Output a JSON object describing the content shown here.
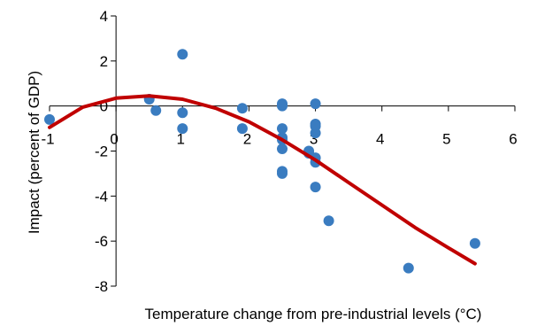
{
  "chart_data": {
    "type": "scatter",
    "title": "",
    "xlabel": "Temperature change from pre-industrial levels (°C)",
    "ylabel": "Impact (percent of GDP)",
    "xlim": [
      -1,
      6
    ],
    "ylim": [
      -8,
      4
    ],
    "xticks": [
      -1,
      0,
      1,
      2,
      3,
      4,
      5,
      6
    ],
    "yticks": [
      -8,
      -6,
      -4,
      -2,
      0,
      2,
      4
    ],
    "grid": false,
    "legend": "none",
    "series": [
      {
        "type": "scatter",
        "color": "#3a7cc0",
        "points": [
          {
            "x": -1.0,
            "y": -0.6
          },
          {
            "x": 0.5,
            "y": 0.3
          },
          {
            "x": 0.6,
            "y": -0.2
          },
          {
            "x": 1.0,
            "y": 2.3
          },
          {
            "x": 1.0,
            "y": -0.3
          },
          {
            "x": 1.0,
            "y": -1.0
          },
          {
            "x": 1.9,
            "y": -0.1
          },
          {
            "x": 1.9,
            "y": -1.0
          },
          {
            "x": 2.5,
            "y": 0.1
          },
          {
            "x": 2.5,
            "y": 0.0
          },
          {
            "x": 2.5,
            "y": -1.0
          },
          {
            "x": 2.5,
            "y": -1.4
          },
          {
            "x": 2.5,
            "y": -1.5
          },
          {
            "x": 2.5,
            "y": -1.9
          },
          {
            "x": 2.5,
            "y": -2.9
          },
          {
            "x": 2.5,
            "y": -3.0
          },
          {
            "x": 2.9,
            "y": -2.0
          },
          {
            "x": 2.9,
            "y": -2.1
          },
          {
            "x": 3.0,
            "y": 0.1
          },
          {
            "x": 3.0,
            "y": -0.8
          },
          {
            "x": 3.0,
            "y": -0.9
          },
          {
            "x": 3.0,
            "y": -1.2
          },
          {
            "x": 3.0,
            "y": -2.3
          },
          {
            "x": 3.0,
            "y": -2.5
          },
          {
            "x": 3.0,
            "y": -3.6
          },
          {
            "x": 3.2,
            "y": -5.1
          },
          {
            "x": 4.4,
            "y": -7.2
          },
          {
            "x": 5.4,
            "y": -6.1
          }
        ]
      },
      {
        "type": "line",
        "color": "#c00000",
        "x": [
          -1.0,
          -0.5,
          0.0,
          0.5,
          1.0,
          1.5,
          2.0,
          2.5,
          3.0,
          3.5,
          4.0,
          4.5,
          5.0,
          5.4
        ],
        "y": [
          -0.95,
          -0.05,
          0.35,
          0.45,
          0.3,
          -0.1,
          -0.7,
          -1.5,
          -2.4,
          -3.4,
          -4.4,
          -5.4,
          -6.3,
          -7.0
        ]
      }
    ]
  }
}
